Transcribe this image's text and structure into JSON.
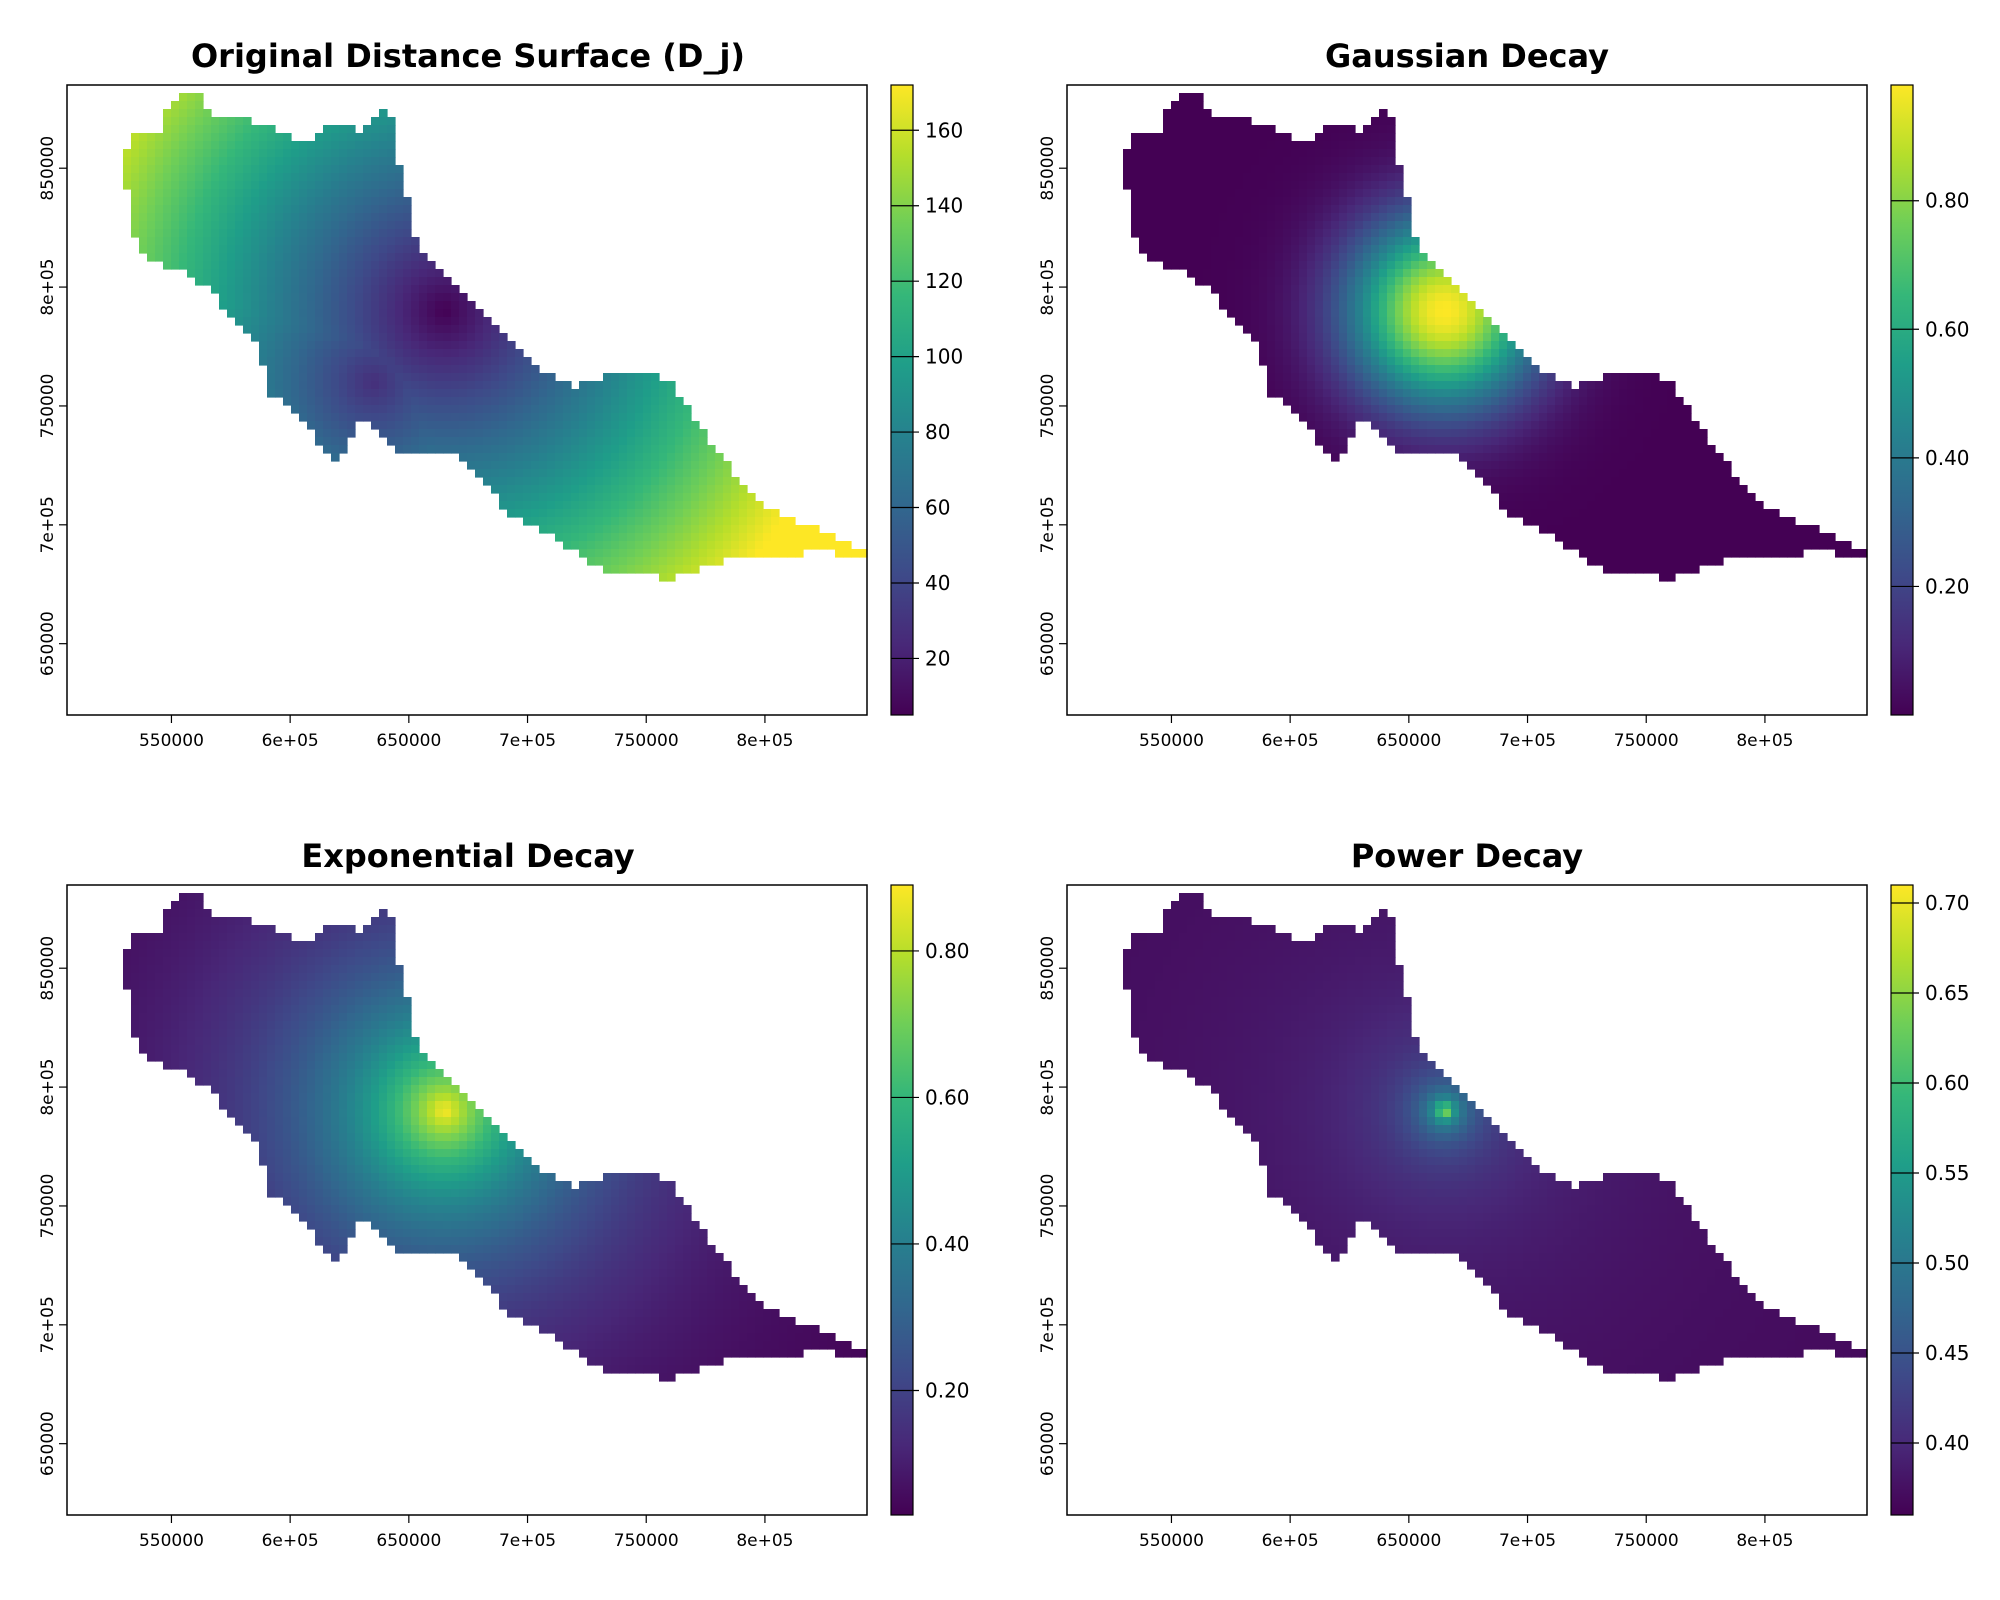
{
  "chart_data": [
    {
      "type": "heatmap",
      "title": "Original Distance Surface (D_j)",
      "xlabel": "",
      "ylabel": "",
      "x_ticks": [
        "550000",
        "6e+05",
        "650000",
        "7e+05",
        "750000",
        "8e+05"
      ],
      "x_tick_values": [
        550000,
        600000,
        650000,
        700000,
        750000,
        800000
      ],
      "y_ticks": [
        "650000",
        "7e+05",
        "750000",
        "8e+05",
        "850000"
      ],
      "y_tick_values": [
        650000,
        700000,
        750000,
        800000,
        850000
      ],
      "xlim": [
        506000,
        843000
      ],
      "ylim": [
        620000,
        885000
      ],
      "legend": {
        "ticks": [
          "20",
          "40",
          "60",
          "80",
          "100",
          "120",
          "140",
          "160"
        ],
        "tick_values": [
          20,
          40,
          60,
          80,
          100,
          120,
          140,
          160
        ],
        "min": 5,
        "max": 172
      },
      "hotspots": [
        {
          "x": 665000,
          "y": 790000,
          "value": 10
        },
        {
          "x": 635000,
          "y": 760000,
          "value": 30
        }
      ],
      "field": {
        "type": "distance",
        "centers": [
          [
            665000,
            790000
          ],
          [
            635000,
            760000
          ]
        ]
      },
      "grid": false
    },
    {
      "type": "heatmap",
      "title": "Gaussian Decay",
      "xlabel": "",
      "ylabel": "",
      "x_ticks": [
        "550000",
        "6e+05",
        "650000",
        "7e+05",
        "750000",
        "8e+05"
      ],
      "x_tick_values": [
        550000,
        600000,
        650000,
        700000,
        750000,
        800000
      ],
      "y_ticks": [
        "650000",
        "7e+05",
        "750000",
        "8e+05",
        "850000"
      ],
      "y_tick_values": [
        650000,
        700000,
        750000,
        800000,
        850000
      ],
      "xlim": [
        506000,
        843000
      ],
      "ylim": [
        620000,
        885000
      ],
      "legend": {
        "ticks": [
          "0.20",
          "0.40",
          "0.60",
          "0.80"
        ],
        "tick_values": [
          0.2,
          0.4,
          0.6,
          0.8
        ],
        "min": 0.0,
        "max": 0.98
      },
      "hotspots": [
        {
          "x": 665000,
          "y": 790000,
          "value": 0.95
        }
      ],
      "field": {
        "type": "gaussian",
        "sigma": 28000
      },
      "grid": false
    },
    {
      "type": "heatmap",
      "title": "Exponential Decay",
      "xlabel": "",
      "ylabel": "",
      "x_ticks": [
        "550000",
        "6e+05",
        "650000",
        "7e+05",
        "750000",
        "8e+05"
      ],
      "x_tick_values": [
        550000,
        600000,
        650000,
        700000,
        750000,
        800000
      ],
      "y_ticks": [
        "650000",
        "7e+05",
        "750000",
        "8e+05",
        "850000"
      ],
      "y_tick_values": [
        650000,
        700000,
        750000,
        800000,
        850000
      ],
      "xlim": [
        506000,
        843000
      ],
      "ylim": [
        620000,
        885000
      ],
      "legend": {
        "ticks": [
          "0.20",
          "0.40",
          "0.60",
          "0.80"
        ],
        "tick_values": [
          0.2,
          0.4,
          0.6,
          0.8
        ],
        "min": 0.03,
        "max": 0.89
      },
      "hotspots": [
        {
          "x": 665000,
          "y": 790000,
          "value": 0.88
        }
      ],
      "field": {
        "type": "exponential",
        "scale": 50000
      },
      "grid": false
    },
    {
      "type": "heatmap",
      "title": "Power Decay",
      "xlabel": "",
      "ylabel": "",
      "x_ticks": [
        "550000",
        "6e+05",
        "650000",
        "7e+05",
        "750000",
        "8e+05"
      ],
      "x_tick_values": [
        550000,
        600000,
        650000,
        700000,
        750000,
        800000
      ],
      "y_ticks": [
        "650000",
        "7e+05",
        "750000",
        "8e+05",
        "850000"
      ],
      "y_tick_values": [
        650000,
        700000,
        750000,
        800000,
        850000
      ],
      "xlim": [
        506000,
        843000
      ],
      "ylim": [
        620000,
        885000
      ],
      "legend": {
        "ticks": [
          "0.40",
          "0.45",
          "0.50",
          "0.55",
          "0.60",
          "0.65",
          "0.70"
        ],
        "tick_values": [
          0.4,
          0.45,
          0.5,
          0.55,
          0.6,
          0.65,
          0.7
        ],
        "min": 0.36,
        "max": 0.71
      },
      "hotspots": [
        {
          "x": 665000,
          "y": 790000,
          "value": 0.7
        }
      ],
      "field": {
        "type": "power",
        "exponent": 0.25
      },
      "grid": false
    }
  ],
  "colors": {
    "viridis": [
      "#440154",
      "#482878",
      "#3e4a89",
      "#31688e",
      "#26828e",
      "#1f9e89",
      "#35b779",
      "#6ece58",
      "#b5de2b",
      "#fde725"
    ],
    "axis": "#000000",
    "background": "#ffffff"
  },
  "region_outline": [
    [
      531000,
      858000
    ],
    [
      536000,
      866000
    ],
    [
      545000,
      864000
    ],
    [
      550000,
      879000
    ],
    [
      558000,
      883000
    ],
    [
      563000,
      880000
    ],
    [
      566000,
      870000
    ],
    [
      578000,
      872000
    ],
    [
      588000,
      867000
    ],
    [
      598000,
      866000
    ],
    [
      606000,
      860000
    ],
    [
      617000,
      870000
    ],
    [
      629000,
      866000
    ],
    [
      641000,
      878000
    ],
    [
      646000,
      852000
    ],
    [
      649000,
      839000
    ],
    [
      653000,
      818000
    ],
    [
      665000,
      805000
    ],
    [
      679000,
      792000
    ],
    [
      690000,
      779000
    ],
    [
      705000,
      766000
    ],
    [
      721000,
      758000
    ],
    [
      733000,
      763000
    ],
    [
      749000,
      765000
    ],
    [
      762000,
      758000
    ],
    [
      770000,
      745000
    ],
    [
      781000,
      730000
    ],
    [
      790000,
      717000
    ],
    [
      800000,
      708000
    ],
    [
      812000,
      702000
    ],
    [
      826000,
      697000
    ],
    [
      842000,
      688000
    ],
    [
      833000,
      688000
    ],
    [
      818000,
      689000
    ],
    [
      805000,
      685000
    ],
    [
      793000,
      685000
    ],
    [
      783000,
      685000
    ],
    [
      771000,
      681000
    ],
    [
      760000,
      677000
    ],
    [
      745000,
      680000
    ],
    [
      736000,
      681000
    ],
    [
      726000,
      682000
    ],
    [
      719000,
      690000
    ],
    [
      707000,
      697000
    ],
    [
      691000,
      705000
    ],
    [
      683000,
      718000
    ],
    [
      670000,
      729000
    ],
    [
      655000,
      732000
    ],
    [
      645000,
      731000
    ],
    [
      640000,
      738000
    ],
    [
      629000,
      745000
    ],
    [
      621000,
      726000
    ],
    [
      614000,
      733000
    ],
    [
      604000,
      745000
    ],
    [
      591000,
      756000
    ],
    [
      587000,
      775000
    ],
    [
      574000,
      789000
    ],
    [
      565000,
      800000
    ],
    [
      553000,
      808000
    ],
    [
      541000,
      811000
    ],
    [
      532000,
      823000
    ],
    [
      535000,
      835000
    ],
    [
      529000,
      845000
    ]
  ]
}
